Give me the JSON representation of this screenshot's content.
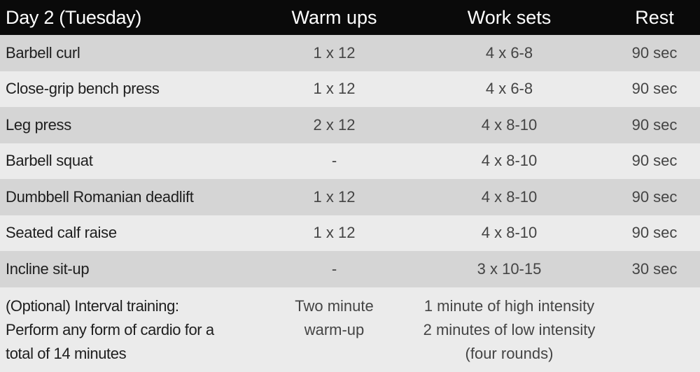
{
  "table": {
    "header": {
      "title": "Day 2 (Tuesday)",
      "warmups": "Warm ups",
      "worksets": "Work sets",
      "rest": "Rest"
    },
    "rows": [
      {
        "exercise": "Barbell curl",
        "warmups": "1 x 12",
        "worksets": "4 x 6-8",
        "rest": "90 sec"
      },
      {
        "exercise": "Close-grip bench press",
        "warmups": "1 x 12",
        "worksets": "4 x 6-8",
        "rest": "90 sec"
      },
      {
        "exercise": "Leg press",
        "warmups": "2 x 12",
        "worksets": "4 x 8-10",
        "rest": "90 sec"
      },
      {
        "exercise": "Barbell squat",
        "warmups": "-",
        "worksets": "4 x 8-10",
        "rest": "90 sec"
      },
      {
        "exercise": "Dumbbell Romanian deadlift",
        "warmups": "1 x 12",
        "worksets": "4 x 8-10",
        "rest": "90 sec"
      },
      {
        "exercise": "Seated calf raise",
        "warmups": "1 x 12",
        "worksets": "4 x 8-10",
        "rest": "90 sec"
      },
      {
        "exercise": "Incline sit-up",
        "warmups": "-",
        "worksets": "3 x 10-15",
        "rest": "30 sec"
      }
    ],
    "footer": {
      "exercise_lines": [
        "(Optional) Interval training:",
        "Perform any form of cardio for a",
        "total of 14 minutes"
      ],
      "warmup_lines": [
        "Two minute",
        "warm-up"
      ],
      "workset_lines": [
        "1 minute of high intensity",
        "2 minutes of low intensity",
        "(four rounds)"
      ],
      "rest": ""
    }
  }
}
